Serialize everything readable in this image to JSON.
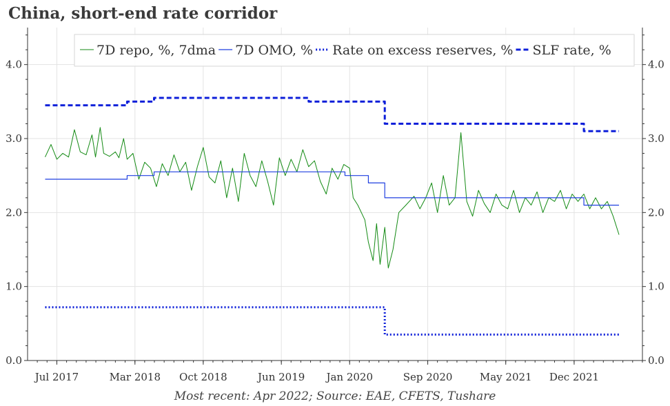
{
  "chart_data": {
    "type": "line",
    "title": "China, short-end rate corridor",
    "source": "Most recent: Apr 2022; Source: EAE, CFETS, Tushare",
    "xlabel": "",
    "ylabel": "",
    "ylim": [
      0.0,
      4.5
    ],
    "x_ticks": [
      "Jul 2017",
      "Mar 2018",
      "Oct 2018",
      "Jun 2019",
      "Jan 2020",
      "Sep 2020",
      "May 2021",
      "Dec 2021"
    ],
    "x_tick_dates": [
      2017.5,
      2018.167,
      2018.75,
      2019.417,
      2020.0,
      2020.667,
      2021.333,
      2021.917
    ],
    "y_ticks": [
      "0.0",
      "1.0",
      "2.0",
      "3.0",
      "4.0"
    ],
    "y_tick_values": [
      0,
      1,
      2,
      3,
      4
    ],
    "x_range": [
      2017.25,
      2022.5
    ],
    "grid": true,
    "legend_position": "top-right",
    "series": [
      {
        "name": "7D repo, %, 7dma",
        "color": "#138a13",
        "style": "solid",
        "x": [
          2017.4,
          2017.45,
          2017.5,
          2017.55,
          2017.6,
          2017.65,
          2017.7,
          2017.75,
          2017.8,
          2017.83,
          2017.87,
          2017.9,
          2017.95,
          2018.0,
          2018.03,
          2018.07,
          2018.1,
          2018.15,
          2018.2,
          2018.25,
          2018.3,
          2018.35,
          2018.4,
          2018.45,
          2018.5,
          2018.55,
          2018.6,
          2018.65,
          2018.7,
          2018.75,
          2018.8,
          2018.85,
          2018.9,
          2018.95,
          2019.0,
          2019.05,
          2019.1,
          2019.15,
          2019.2,
          2019.25,
          2019.3,
          2019.35,
          2019.4,
          2019.45,
          2019.5,
          2019.55,
          2019.6,
          2019.65,
          2019.7,
          2019.75,
          2019.8,
          2019.85,
          2019.9,
          2019.95,
          2020.0,
          2020.03,
          2020.07,
          2020.1,
          2020.13,
          2020.16,
          2020.2,
          2020.23,
          2020.26,
          2020.3,
          2020.33,
          2020.37,
          2020.42,
          2020.48,
          2020.55,
          2020.6,
          2020.65,
          2020.7,
          2020.75,
          2020.8,
          2020.85,
          2020.9,
          2020.95,
          2021.0,
          2021.05,
          2021.1,
          2021.15,
          2021.2,
          2021.25,
          2021.3,
          2021.35,
          2021.4,
          2021.45,
          2021.5,
          2021.55,
          2021.6,
          2021.65,
          2021.7,
          2021.75,
          2021.8,
          2021.85,
          2021.9,
          2021.95,
          2022.0,
          2022.05,
          2022.1,
          2022.15,
          2022.2,
          2022.25,
          2022.3
        ],
        "values": [
          2.75,
          2.92,
          2.72,
          2.8,
          2.75,
          3.12,
          2.82,
          2.78,
          3.05,
          2.75,
          3.15,
          2.8,
          2.76,
          2.82,
          2.74,
          3.0,
          2.72,
          2.8,
          2.45,
          2.68,
          2.6,
          2.35,
          2.66,
          2.5,
          2.78,
          2.55,
          2.68,
          2.3,
          2.62,
          2.88,
          2.48,
          2.4,
          2.7,
          2.2,
          2.6,
          2.15,
          2.8,
          2.5,
          2.35,
          2.7,
          2.42,
          2.1,
          2.74,
          2.5,
          2.72,
          2.55,
          2.85,
          2.62,
          2.7,
          2.42,
          2.25,
          2.6,
          2.45,
          2.65,
          2.6,
          2.2,
          2.1,
          2.0,
          1.9,
          1.6,
          1.35,
          1.85,
          1.3,
          1.8,
          1.25,
          1.5,
          2.0,
          2.1,
          2.22,
          2.05,
          2.2,
          2.4,
          2.0,
          2.5,
          2.1,
          2.2,
          3.08,
          2.15,
          1.95,
          2.3,
          2.12,
          2.0,
          2.25,
          2.1,
          2.05,
          2.3,
          2.0,
          2.2,
          2.1,
          2.28,
          2.0,
          2.2,
          2.15,
          2.3,
          2.05,
          2.25,
          2.15,
          2.25,
          2.05,
          2.2,
          2.05,
          2.15,
          1.95,
          1.7
        ]
      },
      {
        "name": "7D OMO, %",
        "color": "#1f3fe0",
        "style": "solid",
        "steps": [
          [
            2017.4,
            2.45
          ],
          [
            2018.1,
            2.5
          ],
          [
            2018.33,
            2.55
          ],
          [
            2019.96,
            2.5
          ],
          [
            2020.16,
            2.4
          ],
          [
            2020.3,
            2.2
          ],
          [
            2022.0,
            2.1
          ],
          [
            2022.3,
            2.1
          ]
        ]
      },
      {
        "name": "Rate on excess reserves, %",
        "color": "#0d1fd9",
        "style": "dotted",
        "steps": [
          [
            2017.4,
            0.72
          ],
          [
            2020.3,
            0.35
          ],
          [
            2022.3,
            0.35
          ]
        ]
      },
      {
        "name": "SLF rate, %",
        "color": "#0d1fd9",
        "style": "dashed",
        "steps": [
          [
            2017.4,
            3.45
          ],
          [
            2018.1,
            3.5
          ],
          [
            2018.33,
            3.55
          ],
          [
            2019.65,
            3.5
          ],
          [
            2020.3,
            3.2
          ],
          [
            2022.0,
            3.1
          ],
          [
            2022.3,
            3.1
          ]
        ]
      }
    ]
  }
}
